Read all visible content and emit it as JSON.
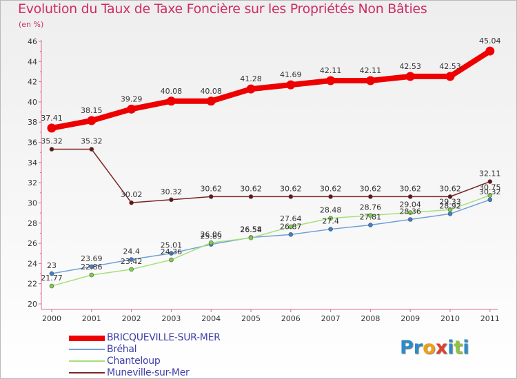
{
  "title": "Evolution du Taux de Taxe Foncière sur les Propriétés Non Bâties",
  "unit": "(en %)",
  "logo": {
    "letters": [
      "P",
      "r",
      "o",
      "x",
      "i",
      "t",
      "i"
    ],
    "colors": [
      "#2c8bc9",
      "#2c8bc9",
      "#f0a012",
      "#e0412d",
      "#2c8bc9",
      "#8cc63e",
      "#2c8bc9"
    ]
  },
  "chart_data": {
    "type": "line",
    "title": "Evolution du Taux de Taxe Foncière sur les Propriétés Non Bâties",
    "xlabel": "",
    "ylabel": "(en %)",
    "ylim": [
      20,
      46
    ],
    "ytick_step": 2,
    "categories": [
      "2000",
      "2001",
      "2002",
      "2003",
      "2004",
      "2005",
      "2006",
      "2007",
      "2008",
      "2009",
      "2010",
      "2011"
    ],
    "series": [
      {
        "name": "BRICQUEVILLE-SUR-MER",
        "color": "#ee0000",
        "marker": "#ee0000",
        "thick": true,
        "values": [
          37.41,
          38.15,
          39.29,
          40.08,
          40.08,
          41.28,
          41.69,
          42.11,
          42.11,
          42.53,
          42.53,
          45.04
        ],
        "labels": [
          "37.41",
          "38.15",
          "39.29",
          "40.08",
          "40.08",
          "41.28",
          "41.69",
          "42.11",
          "42.11",
          "42.53",
          "42.53",
          "45.04"
        ]
      },
      {
        "name": "Bréhal",
        "color": "#6f9fd8",
        "marker": "#3f7fc8",
        "thick": false,
        "values": [
          23,
          23.69,
          24.4,
          25.01,
          25.89,
          26.58,
          26.87,
          27.4,
          27.81,
          28.36,
          28.92,
          30.32
        ],
        "labels": [
          "23",
          "23.69",
          "24.4",
          "25.01",
          "25.89",
          "26.58",
          "26.87",
          "27.4",
          "27.81",
          "28.36",
          "28.92",
          "30.32"
        ]
      },
      {
        "name": "Chanteloup",
        "color": "#a6e07c",
        "marker": "#7cd04a",
        "thick": false,
        "values": [
          21.77,
          22.86,
          23.42,
          24.36,
          26.06,
          26.54,
          27.64,
          28.48,
          28.76,
          29.04,
          29.33,
          30.75
        ],
        "labels": [
          "21.77",
          "22.86",
          "23.42",
          "24.36",
          "26.06",
          "26.54",
          "27.64",
          "28.48",
          "28.76",
          "29.04",
          "29.33",
          "30.75"
        ]
      },
      {
        "name": "Muneville-sur-Mer",
        "color": "#7a2424",
        "marker": "#6a1414",
        "thick": false,
        "values": [
          35.32,
          35.32,
          30.02,
          30.32,
          30.62,
          30.62,
          30.62,
          30.62,
          30.62,
          30.62,
          30.62,
          32.11
        ],
        "labels": [
          "35.32",
          "35.32",
          "30.02",
          "30.32",
          "30.62",
          "30.62",
          "30.62",
          "30.62",
          "30.62",
          "30.62",
          "30.62",
          "32.11"
        ]
      }
    ]
  }
}
